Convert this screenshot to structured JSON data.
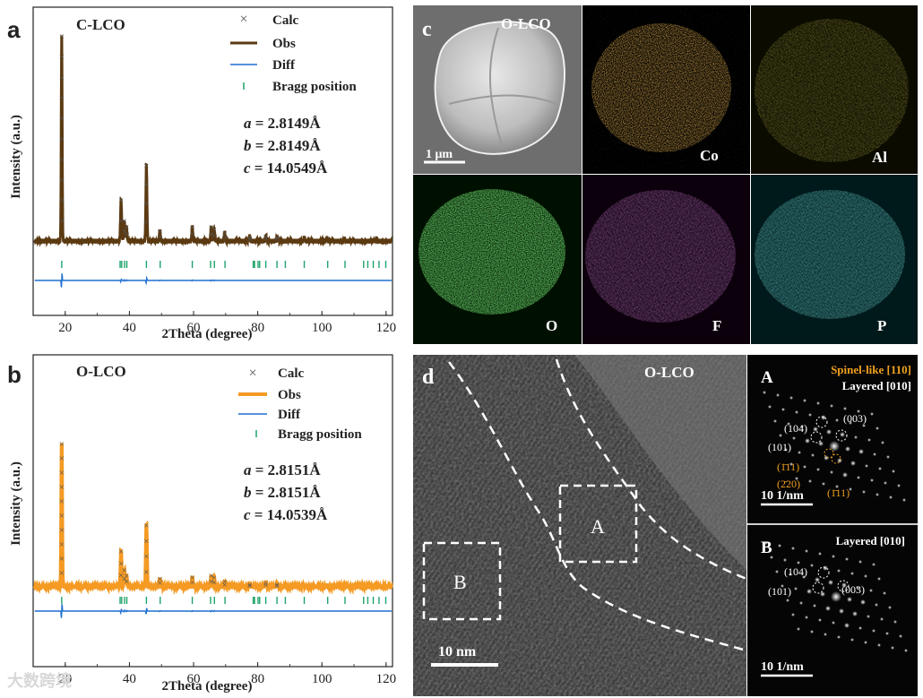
{
  "panels": {
    "a": {
      "label": "a"
    },
    "b": {
      "label": "b"
    },
    "c": {
      "label": "c"
    },
    "d": {
      "label": "d"
    }
  },
  "chart_data": [
    {
      "type": "line",
      "panel": "a",
      "sample": "C-LCO",
      "xlabel": "2Theta (degree)",
      "ylabel": "Intensity (a.u.)",
      "xlim": [
        10,
        122
      ],
      "xticks": [
        20,
        40,
        60,
        80,
        100,
        120
      ],
      "obs_color": "#5b3a12",
      "calc_color": "#555555",
      "diff_color": "#1f6fd0",
      "bragg_color": "#1fa36a",
      "legend": [
        "Calc",
        "Obs",
        "Diff",
        "Bragg position"
      ],
      "lattice": [
        {
          "name": "a",
          "value": " = 2.8149Å"
        },
        {
          "name": "b",
          "value": " = 2.8149Å"
        },
        {
          "name": "c",
          "value": " = 14.0549Å"
        }
      ],
      "peaks": [
        {
          "x": 18.9,
          "h": 1.0
        },
        {
          "x": 37.4,
          "h": 0.2
        },
        {
          "x": 38.4,
          "h": 0.1
        },
        {
          "x": 39.1,
          "h": 0.07
        },
        {
          "x": 45.3,
          "h": 0.37
        },
        {
          "x": 49.5,
          "h": 0.05
        },
        {
          "x": 59.6,
          "h": 0.07
        },
        {
          "x": 65.5,
          "h": 0.07
        },
        {
          "x": 66.4,
          "h": 0.06
        },
        {
          "x": 69.7,
          "h": 0.04
        },
        {
          "x": 77.5,
          "h": 0.02
        },
        {
          "x": 82.5,
          "h": 0.025
        },
        {
          "x": 86.0,
          "h": 0.02
        },
        {
          "x": 94.5,
          "h": 0.015
        },
        {
          "x": 101.5,
          "h": 0.015
        },
        {
          "x": 107.0,
          "h": 0.012
        },
        {
          "x": 117.0,
          "h": 0.012
        }
      ],
      "bragg": [
        18.9,
        37.1,
        37.6,
        38.5,
        39.2,
        45.3,
        49.6,
        59.6,
        65.3,
        66.5,
        69.8,
        78.6,
        79.0,
        80.1,
        80.6,
        82.5,
        86.0,
        88.6,
        94.5,
        101.8,
        107.2,
        113.0,
        114.3,
        116.0,
        117.8,
        119.9
      ]
    },
    {
      "type": "line",
      "panel": "b",
      "sample": "O-LCO",
      "xlabel": "2Theta (degree)",
      "ylabel": "Intensity (a.u.)",
      "xlim": [
        10,
        122
      ],
      "xticks": [
        20,
        40,
        60,
        80,
        100,
        120
      ],
      "obs_color": "#f59a23",
      "calc_color": "#555555",
      "diff_color": "#1f6fd0",
      "bragg_color": "#1fa36a",
      "legend": [
        "Calc",
        "Obs",
        "Diff",
        "Bragg position"
      ],
      "lattice": [
        {
          "name": "a",
          "value": " = 2.8151Å"
        },
        {
          "name": "b",
          "value": " = 2.8151Å"
        },
        {
          "name": "c",
          "value": " = 14.0539Å"
        }
      ],
      "peaks": [
        {
          "x": 18.9,
          "h": 1.0
        },
        {
          "x": 37.4,
          "h": 0.25
        },
        {
          "x": 38.4,
          "h": 0.12
        },
        {
          "x": 39.1,
          "h": 0.08
        },
        {
          "x": 45.3,
          "h": 0.43
        },
        {
          "x": 49.5,
          "h": 0.06
        },
        {
          "x": 59.6,
          "h": 0.07
        },
        {
          "x": 65.5,
          "h": 0.08
        },
        {
          "x": 66.4,
          "h": 0.07
        },
        {
          "x": 69.7,
          "h": 0.04
        },
        {
          "x": 77.5,
          "h": 0.02
        },
        {
          "x": 82.5,
          "h": 0.03
        },
        {
          "x": 86.0,
          "h": 0.02
        },
        {
          "x": 94.5,
          "h": 0.015
        },
        {
          "x": 101.5,
          "h": 0.015
        },
        {
          "x": 107.0,
          "h": 0.012
        },
        {
          "x": 117.0,
          "h": 0.012
        }
      ],
      "bragg": [
        18.9,
        37.1,
        37.6,
        38.5,
        39.2,
        45.3,
        49.6,
        59.6,
        65.3,
        66.5,
        69.8,
        78.6,
        79.0,
        80.1,
        80.6,
        82.5,
        86.0,
        88.6,
        94.5,
        101.8,
        107.2,
        113.0,
        114.3,
        116.0,
        117.8,
        119.9
      ]
    }
  ],
  "eds": {
    "sample": "O-LCO",
    "scale_bar": "1 μm",
    "maps": [
      {
        "element": "Co",
        "color": "#e07b14"
      },
      {
        "element": "Al",
        "color": "#c9c21a"
      },
      {
        "element": "O",
        "color": "#2fd12f"
      },
      {
        "element": "F",
        "color": "#c23fd0"
      },
      {
        "element": "P",
        "color": "#2ec4c4"
      }
    ]
  },
  "hrtem": {
    "sample": "O-LCO",
    "scale_bar": "10 nm",
    "region_a": "A",
    "region_b": "B",
    "fft_a": {
      "label": "A",
      "title_spinel": "Spinel-like [110]",
      "title_layered": "Layered [010]",
      "spots": [
        "(104)",
        "(101)",
        "(003)",
        "(1̄11)",
        "(2̄20)",
        "(1̄11)"
      ],
      "scale_bar": "10 1/nm",
      "spinel_color": "#f0a020"
    },
    "fft_b": {
      "label": "B",
      "title_layered": "Layered [010]",
      "spots": [
        "(104)",
        "(101)",
        "(003)"
      ],
      "scale_bar": "10 1/nm"
    }
  },
  "watermark": "大数跨境"
}
